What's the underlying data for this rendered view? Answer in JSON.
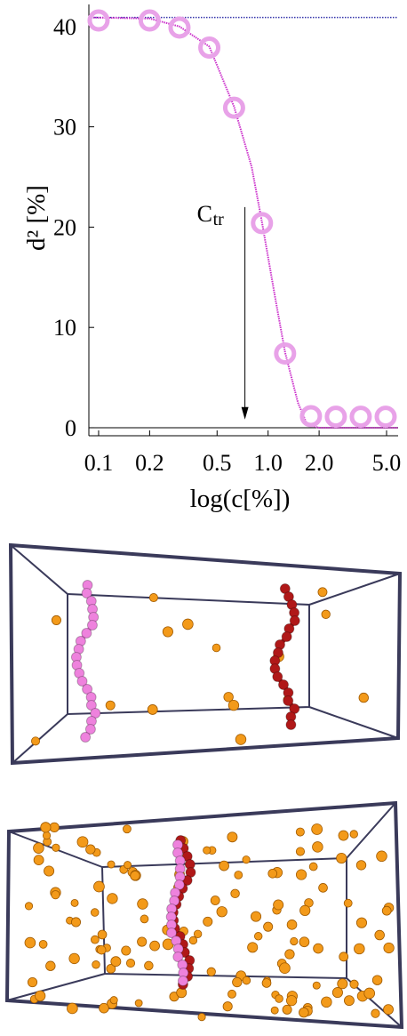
{
  "chart_data": {
    "type": "scatter",
    "xlabel": "log(c[%])",
    "ylabel": "d² [%]",
    "log_x": true,
    "xlim": [
      0.0876,
      5.85
    ],
    "ylim": [
      -0.8,
      42.2
    ],
    "xticks": [
      0.1,
      0.2,
      0.5,
      {
        "value": 1,
        "label": "1.0"
      },
      {
        "value": 2,
        "label": "2.0"
      },
      {
        "value": 5,
        "label": "5.0"
      }
    ],
    "yticks": [
      0,
      10,
      20,
      30,
      40
    ],
    "series": [
      {
        "kind": "points",
        "color": "#e8a2e8",
        "x": [
          0.1,
          0.2,
          0.3,
          0.45,
          0.63,
          0.92,
          1.26,
          1.79,
          2.51,
          3.52,
          4.94
        ],
        "values": [
          40.6,
          40.6,
          39.9,
          37.9,
          31.9,
          20.4,
          7.4,
          1.15,
          1.1,
          1.1,
          1.1
        ]
      },
      {
        "kind": "line",
        "color": "#cc33cc",
        "x": [
          0.0876,
          0.2,
          0.3,
          0.45,
          0.63,
          0.8,
          0.92,
          1.1,
          1.26,
          1.5,
          1.7,
          2,
          3,
          5.85
        ],
        "values": [
          40.9,
          40.8,
          40,
          38,
          32,
          26,
          20.5,
          13,
          7.5,
          2.5,
          0.3,
          0,
          0,
          0
        ]
      }
    ],
    "reference_lines": [
      {
        "value": 40.9,
        "color": "#3333aa",
        "dotted": true
      },
      {
        "value": 0,
        "color": "#000000",
        "dotted": false
      }
    ],
    "annotation": {
      "text": "C",
      "subscript": "tr",
      "x": 0.73,
      "y_from": 22,
      "y_to": 1
    }
  }
}
